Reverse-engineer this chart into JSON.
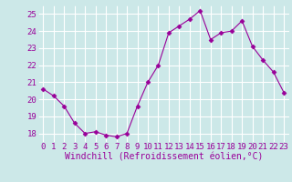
{
  "x": [
    0,
    1,
    2,
    3,
    4,
    5,
    6,
    7,
    8,
    9,
    10,
    11,
    12,
    13,
    14,
    15,
    16,
    17,
    18,
    19,
    20,
    21,
    22,
    23
  ],
  "y": [
    20.6,
    20.2,
    19.6,
    18.6,
    18.0,
    18.1,
    17.9,
    17.8,
    18.0,
    19.6,
    21.0,
    22.0,
    23.9,
    24.3,
    24.7,
    25.2,
    23.5,
    23.9,
    24.0,
    24.6,
    23.1,
    22.3,
    21.6,
    20.4
  ],
  "xlabel": "Windchill (Refroidissement éolien,°C)",
  "ylim": [
    17.5,
    25.5
  ],
  "yticks": [
    18,
    19,
    20,
    21,
    22,
    23,
    24,
    25
  ],
  "xticks": [
    0,
    1,
    2,
    3,
    4,
    5,
    6,
    7,
    8,
    9,
    10,
    11,
    12,
    13,
    14,
    15,
    16,
    17,
    18,
    19,
    20,
    21,
    22,
    23
  ],
  "line_color": "#990099",
  "marker": "D",
  "marker_size": 2.5,
  "bg_color": "#cce8e8",
  "grid_color": "#ffffff",
  "tick_label_color": "#990099",
  "xlabel_color": "#990099",
  "xlabel_fontsize": 7,
  "tick_fontsize": 6.5
}
